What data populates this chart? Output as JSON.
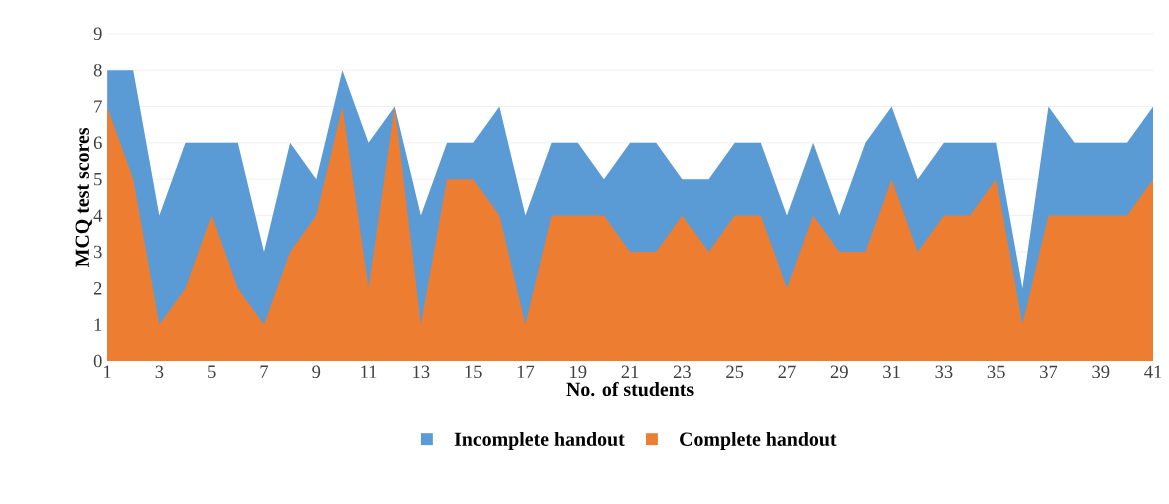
{
  "chart_data": {
    "type": "area",
    "xlabel": "No. of students",
    "ylabel": "MCQ test scores",
    "x": [
      1,
      2,
      3,
      4,
      5,
      6,
      7,
      8,
      9,
      10,
      11,
      12,
      13,
      14,
      15,
      16,
      17,
      18,
      19,
      20,
      21,
      22,
      23,
      24,
      25,
      26,
      27,
      28,
      29,
      30,
      31,
      32,
      33,
      34,
      35,
      36,
      37,
      38,
      39,
      40,
      41
    ],
    "xlim": [
      1,
      41
    ],
    "xticks": [
      1,
      3,
      5,
      7,
      9,
      11,
      13,
      15,
      17,
      19,
      21,
      23,
      25,
      27,
      29,
      31,
      33,
      35,
      37,
      39,
      41
    ],
    "ylim": [
      0,
      9
    ],
    "yticks": [
      0,
      1,
      2,
      3,
      4,
      5,
      6,
      7,
      8,
      9
    ],
    "grid": "y",
    "legend": "bottom",
    "series": [
      {
        "name": "Incomplete handout",
        "color": "#5b9bd5",
        "values": [
          8,
          8,
          4,
          6,
          6,
          6,
          3,
          6,
          5,
          8,
          6,
          7,
          4,
          6,
          6,
          7,
          4,
          6,
          6,
          5,
          6,
          6,
          5,
          5,
          6,
          6,
          4,
          6,
          4,
          6,
          7,
          5,
          6,
          6,
          6,
          2,
          7,
          6,
          6,
          6,
          7
        ]
      },
      {
        "name": "Complete handout",
        "color": "#ed7d31",
        "values": [
          7,
          5,
          1,
          2,
          4,
          2,
          1,
          3,
          4,
          7,
          2,
          7,
          1,
          5,
          5,
          4,
          1,
          4,
          4,
          4,
          3,
          3,
          4,
          3,
          4,
          4,
          2,
          4,
          3,
          3,
          5,
          3,
          4,
          4,
          5,
          1,
          4,
          4,
          4,
          4,
          5
        ]
      }
    ]
  }
}
